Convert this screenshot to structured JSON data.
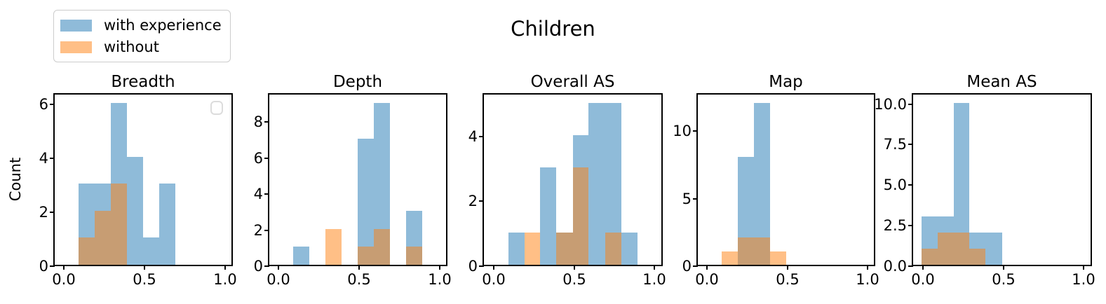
{
  "suptitle": "Children",
  "ylabel": "Count",
  "legend": {
    "items": [
      {
        "label": "with experience",
        "color": "rgba(31,119,180,0.5)"
      },
      {
        "label": "without",
        "color": "rgba(255,127,14,0.5)"
      }
    ]
  },
  "chart_data": [
    {
      "type": "bar",
      "title": "Breadth",
      "xlabel": "",
      "ylabel": "Count",
      "xlim": [
        -0.05,
        1.05
      ],
      "ylim": [
        0,
        6.3
      ],
      "grid": false,
      "has_empty_legend": true,
      "xticks": [
        {
          "v": 0.0,
          "label": "0.0"
        },
        {
          "v": 0.5,
          "label": "0.5"
        },
        {
          "v": 1.0,
          "label": "1.0"
        }
      ],
      "yticks": [
        {
          "v": 0,
          "label": "0"
        },
        {
          "v": 2,
          "label": "2"
        },
        {
          "v": 4,
          "label": "4"
        },
        {
          "v": 6,
          "label": "6"
        }
      ],
      "series": [
        {
          "name": "with experience",
          "color": "rgba(31,119,180,0.5)",
          "bins": [
            {
              "x0": 0.1,
              "x1": 0.2,
              "count": 3
            },
            {
              "x0": 0.2,
              "x1": 0.3,
              "count": 3
            },
            {
              "x0": 0.3,
              "x1": 0.4,
              "count": 6
            },
            {
              "x0": 0.4,
              "x1": 0.5,
              "count": 4
            },
            {
              "x0": 0.5,
              "x1": 0.6,
              "count": 1
            },
            {
              "x0": 0.6,
              "x1": 0.7,
              "count": 3
            }
          ]
        },
        {
          "name": "without",
          "color": "rgba(255,127,14,0.5)",
          "bins": [
            {
              "x0": 0.1,
              "x1": 0.2,
              "count": 1
            },
            {
              "x0": 0.2,
              "x1": 0.3,
              "count": 2
            },
            {
              "x0": 0.3,
              "x1": 0.4,
              "count": 3
            }
          ]
        }
      ]
    },
    {
      "type": "bar",
      "title": "Depth",
      "xlabel": "",
      "ylabel": "",
      "xlim": [
        -0.05,
        1.05
      ],
      "ylim": [
        0,
        9.45
      ],
      "grid": false,
      "has_empty_legend": false,
      "xticks": [
        {
          "v": 0.0,
          "label": "0.0"
        },
        {
          "v": 0.5,
          "label": "0.5"
        },
        {
          "v": 1.0,
          "label": "1.0"
        }
      ],
      "yticks": [
        {
          "v": 0,
          "label": "0"
        },
        {
          "v": 2,
          "label": "2"
        },
        {
          "v": 4,
          "label": "4"
        },
        {
          "v": 6,
          "label": "6"
        },
        {
          "v": 8,
          "label": "8"
        }
      ],
      "series": [
        {
          "name": "with experience",
          "color": "rgba(31,119,180,0.5)",
          "bins": [
            {
              "x0": 0.1,
              "x1": 0.2,
              "count": 1
            },
            {
              "x0": 0.5,
              "x1": 0.6,
              "count": 7
            },
            {
              "x0": 0.6,
              "x1": 0.7,
              "count": 9
            },
            {
              "x0": 0.8,
              "x1": 0.9,
              "count": 3
            }
          ]
        },
        {
          "name": "without",
          "color": "rgba(255,127,14,0.5)",
          "bins": [
            {
              "x0": 0.3,
              "x1": 0.4,
              "count": 2
            },
            {
              "x0": 0.5,
              "x1": 0.6,
              "count": 1
            },
            {
              "x0": 0.6,
              "x1": 0.7,
              "count": 2
            },
            {
              "x0": 0.8,
              "x1": 0.9,
              "count": 1
            }
          ]
        }
      ]
    },
    {
      "type": "bar",
      "title": "Overall AS",
      "xlabel": "",
      "ylabel": "",
      "xlim": [
        -0.05,
        1.05
      ],
      "ylim": [
        0,
        5.25
      ],
      "grid": false,
      "has_empty_legend": false,
      "xticks": [
        {
          "v": 0.0,
          "label": "0.0"
        },
        {
          "v": 0.5,
          "label": "0.5"
        },
        {
          "v": 1.0,
          "label": "1.0"
        }
      ],
      "yticks": [
        {
          "v": 0,
          "label": "0"
        },
        {
          "v": 2,
          "label": "2"
        },
        {
          "v": 4,
          "label": "4"
        }
      ],
      "series": [
        {
          "name": "with experience",
          "color": "rgba(31,119,180,0.5)",
          "bins": [
            {
              "x0": 0.1,
              "x1": 0.2,
              "count": 1
            },
            {
              "x0": 0.3,
              "x1": 0.4,
              "count": 3
            },
            {
              "x0": 0.4,
              "x1": 0.5,
              "count": 1
            },
            {
              "x0": 0.5,
              "x1": 0.6,
              "count": 4
            },
            {
              "x0": 0.6,
              "x1": 0.7,
              "count": 5
            },
            {
              "x0": 0.7,
              "x1": 0.8,
              "count": 5
            },
            {
              "x0": 0.8,
              "x1": 0.9,
              "count": 1
            }
          ]
        },
        {
          "name": "without",
          "color": "rgba(255,127,14,0.5)",
          "bins": [
            {
              "x0": 0.2,
              "x1": 0.3,
              "count": 1
            },
            {
              "x0": 0.4,
              "x1": 0.5,
              "count": 1
            },
            {
              "x0": 0.5,
              "x1": 0.6,
              "count": 3
            },
            {
              "x0": 0.7,
              "x1": 0.8,
              "count": 1
            }
          ]
        }
      ]
    },
    {
      "type": "bar",
      "title": "Map",
      "xlabel": "",
      "ylabel": "",
      "xlim": [
        -0.05,
        1.05
      ],
      "ylim": [
        0,
        12.6
      ],
      "grid": false,
      "has_empty_legend": false,
      "xticks": [
        {
          "v": 0.0,
          "label": "0.0"
        },
        {
          "v": 0.5,
          "label": "0.5"
        },
        {
          "v": 1.0,
          "label": "1.0"
        }
      ],
      "yticks": [
        {
          "v": 0,
          "label": "0"
        },
        {
          "v": 5,
          "label": "5"
        },
        {
          "v": 10,
          "label": "10"
        }
      ],
      "series": [
        {
          "name": "with experience",
          "color": "rgba(31,119,180,0.5)",
          "bins": [
            {
              "x0": 0.2,
              "x1": 0.3,
              "count": 8
            },
            {
              "x0": 0.3,
              "x1": 0.4,
              "count": 12
            }
          ]
        },
        {
          "name": "without",
          "color": "rgba(255,127,14,0.5)",
          "bins": [
            {
              "x0": 0.1,
              "x1": 0.2,
              "count": 1
            },
            {
              "x0": 0.2,
              "x1": 0.3,
              "count": 2
            },
            {
              "x0": 0.3,
              "x1": 0.4,
              "count": 2
            },
            {
              "x0": 0.4,
              "x1": 0.5,
              "count": 1
            }
          ]
        }
      ]
    },
    {
      "type": "bar",
      "title": "Mean AS",
      "xlabel": "",
      "ylabel": "",
      "xlim": [
        -0.05,
        1.05
      ],
      "ylim": [
        0,
        10.5
      ],
      "grid": false,
      "has_empty_legend": false,
      "xticks": [
        {
          "v": 0.0,
          "label": "0.0"
        },
        {
          "v": 0.5,
          "label": "0.5"
        },
        {
          "v": 1.0,
          "label": "1.0"
        }
      ],
      "yticks": [
        {
          "v": 0,
          "label": "0.0"
        },
        {
          "v": 2.5,
          "label": "2.5"
        },
        {
          "v": 5,
          "label": "5.0"
        },
        {
          "v": 7.5,
          "label": "7.5"
        },
        {
          "v": 10,
          "label": "10.0"
        }
      ],
      "series": [
        {
          "name": "with experience",
          "color": "rgba(31,119,180,0.5)",
          "bins": [
            {
              "x0": 0.0,
              "x1": 0.1,
              "count": 3
            },
            {
              "x0": 0.1,
              "x1": 0.2,
              "count": 3
            },
            {
              "x0": 0.2,
              "x1": 0.3,
              "count": 10
            },
            {
              "x0": 0.3,
              "x1": 0.4,
              "count": 2
            },
            {
              "x0": 0.4,
              "x1": 0.5,
              "count": 2
            }
          ]
        },
        {
          "name": "without",
          "color": "rgba(255,127,14,0.5)",
          "bins": [
            {
              "x0": 0.0,
              "x1": 0.1,
              "count": 1
            },
            {
              "x0": 0.1,
              "x1": 0.2,
              "count": 2
            },
            {
              "x0": 0.2,
              "x1": 0.3,
              "count": 2
            },
            {
              "x0": 0.3,
              "x1": 0.4,
              "count": 1
            }
          ]
        }
      ]
    }
  ]
}
